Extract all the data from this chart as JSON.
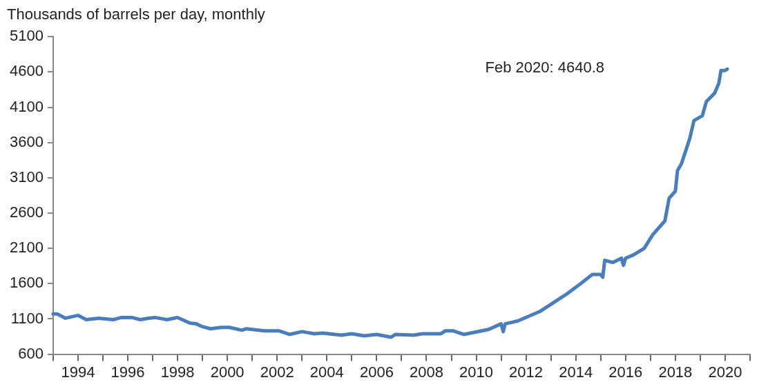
{
  "chart_data": {
    "type": "line",
    "ylabel": "Thousands of barrels per day, monthly",
    "x": [
      "1993-01",
      "1993-03",
      "1993-07",
      "1994-01",
      "1994-05",
      "1994-11",
      "1995-06",
      "1995-10",
      "1996-03",
      "1996-07",
      "1996-11",
      "1997-02",
      "1997-08",
      "1998-01",
      "1998-07",
      "1998-10",
      "1999-01",
      "1999-05",
      "1999-10",
      "2000-02",
      "2000-08",
      "2000-10",
      "2001-07",
      "2002-02",
      "2002-07",
      "2003-01",
      "2003-07",
      "2003-11",
      "2004-08",
      "2005-01",
      "2005-07",
      "2006-01",
      "2006-08",
      "2006-10",
      "2007-07",
      "2007-11",
      "2008-08",
      "2008-10",
      "2009-02",
      "2009-07",
      "2010-07",
      "2011-01",
      "2011-02",
      "2011-03",
      "2011-09",
      "2012-08",
      "2013-08",
      "2014-02",
      "2014-09",
      "2015-01",
      "2015-02",
      "2015-03",
      "2015-07",
      "2015-11",
      "2015-12",
      "2016-01",
      "2016-05",
      "2016-10",
      "2017-02",
      "2017-08",
      "2017-10",
      "2018-01",
      "2018-02",
      "2018-04",
      "2018-08",
      "2018-10",
      "2019-02",
      "2019-04",
      "2019-08",
      "2019-10",
      "2019-11",
      "2020-01",
      "2020-02"
    ],
    "series": [
      {
        "color": "#4a7ebb",
        "values": [
          1170,
          1170,
          1110,
          1150,
          1090,
          1110,
          1090,
          1120,
          1120,
          1090,
          1110,
          1120,
          1090,
          1120,
          1040,
          1030,
          990,
          960,
          980,
          980,
          940,
          960,
          930,
          930,
          880,
          920,
          890,
          900,
          870,
          890,
          860,
          880,
          840,
          880,
          870,
          890,
          890,
          930,
          930,
          880,
          950,
          1030,
          920,
          1030,
          1070,
          1210,
          1440,
          1570,
          1730,
          1730,
          1690,
          1930,
          1900,
          1960,
          1860,
          1960,
          2010,
          2100,
          2290,
          2490,
          2810,
          2910,
          3200,
          3300,
          3660,
          3910,
          3980,
          4180,
          4300,
          4440,
          4620,
          4620,
          4640.8
        ]
      }
    ],
    "ylim": [
      600,
      5100
    ],
    "yticks": [
      600,
      1100,
      1600,
      2100,
      2600,
      3100,
      3600,
      4100,
      4600,
      5100
    ],
    "xlim": [
      "1993-01",
      "2021-01"
    ],
    "xticks": [
      {
        "value": "1993-01",
        "label": null
      },
      {
        "value": "1994-01",
        "label": "1994"
      },
      {
        "value": "1995-01",
        "label": null
      },
      {
        "value": "1996-01",
        "label": "1996"
      },
      {
        "value": "1997-01",
        "label": null
      },
      {
        "value": "1998-01",
        "label": "1998"
      },
      {
        "value": "1999-01",
        "label": null
      },
      {
        "value": "2000-01",
        "label": "2000"
      },
      {
        "value": "2001-01",
        "label": null
      },
      {
        "value": "2002-01",
        "label": "2002"
      },
      {
        "value": "2003-01",
        "label": null
      },
      {
        "value": "2004-01",
        "label": "2004"
      },
      {
        "value": "2005-01",
        "label": null
      },
      {
        "value": "2006-01",
        "label": "2006"
      },
      {
        "value": "2007-01",
        "label": null
      },
      {
        "value": "2008-01",
        "label": "2008"
      },
      {
        "value": "2009-01",
        "label": null
      },
      {
        "value": "2010-01",
        "label": "2010"
      },
      {
        "value": "2011-01",
        "label": null
      },
      {
        "value": "2012-01",
        "label": "2012"
      },
      {
        "value": "2013-01",
        "label": null
      },
      {
        "value": "2014-01",
        "label": "2014"
      },
      {
        "value": "2015-01",
        "label": null
      },
      {
        "value": "2016-01",
        "label": "2016"
      },
      {
        "value": "2017-01",
        "label": null
      },
      {
        "value": "2018-01",
        "label": "2018"
      },
      {
        "value": "2019-01",
        "label": null
      },
      {
        "value": "2020-01",
        "label": "2020"
      },
      {
        "value": "2021-01",
        "label": null
      }
    ],
    "annotations": [
      "Feb 2020: 4640.8"
    ],
    "grid": false,
    "legend": false,
    "marker": "none",
    "line_style": "solid"
  }
}
